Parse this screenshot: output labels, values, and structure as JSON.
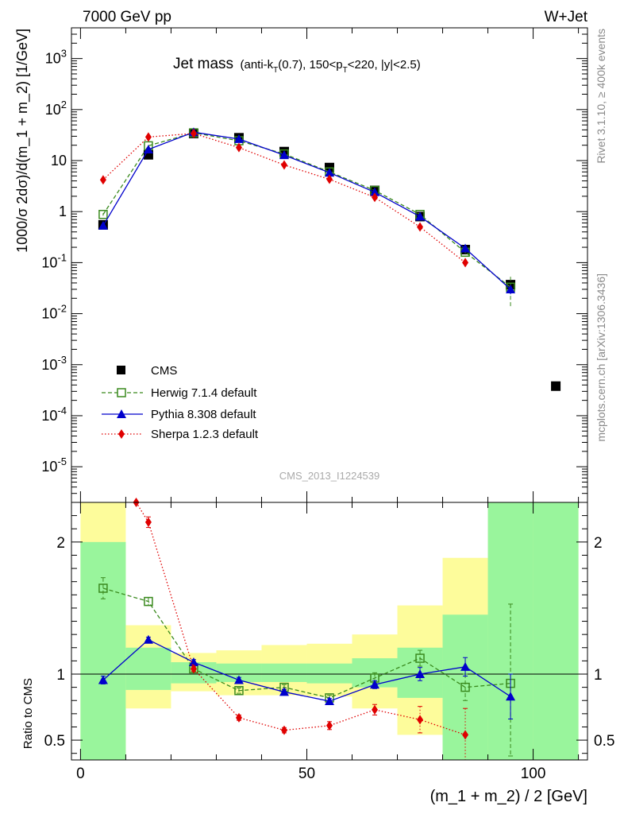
{
  "header": {
    "left": "7000 GeV pp",
    "right": "W+Jet"
  },
  "side_labels": {
    "rivet": "Rivet 3.1.10, ≥ 400k events",
    "mcplots": "mcplots.cern.ch [arXiv:1306.3436]"
  },
  "watermark": "CMS_2013_I1224539",
  "title": {
    "main": "Jet mass",
    "sub_a": "(anti-k",
    "sub_a_sub": "T",
    "sub_b": "(0.7), 150<p",
    "sub_b_sub": "T",
    "sub_c": "<220, |y|<2.5)"
  },
  "legend": {
    "cms": "CMS",
    "herwig": "Herwig 7.1.4 default",
    "pythia": "Pythia 8.308 default",
    "sherpa": "Sherpa 1.2.3 default"
  },
  "colors": {
    "cms": "#000000",
    "herwig": "#3a8a1e",
    "pythia": "#0000cc",
    "sherpa": "#e00000",
    "band_green": "#99f59c",
    "band_yellow": "#fdfc9b"
  },
  "chart_data": [
    {
      "type": "line",
      "panel": "main",
      "ylabel": "1000/σ 2dσ)/d(m_1 + m_2) [1/GeV]",
      "yscale": "log",
      "ylim": [
        2e-06,
        4000
      ],
      "xlim": [
        -2,
        112
      ],
      "y_ticks": [
        "10^-5",
        "10^-4",
        "10^-3",
        "10^-2",
        "10^-1",
        "1",
        "10",
        "10^2",
        "10^3"
      ],
      "series": [
        {
          "name": "CMS",
          "x": [
            5,
            15,
            25,
            35,
            45,
            55,
            65,
            75,
            85,
            95,
            105
          ],
          "y": [
            0.55,
            13,
            34,
            28,
            15,
            7.3,
            2.6,
            0.8,
            0.18,
            0.037,
            0.00038
          ]
        },
        {
          "name": "Herwig 7.1.4 default",
          "x": [
            5,
            15,
            25,
            35,
            45,
            55,
            65,
            75,
            85,
            95
          ],
          "y": [
            0.88,
            19.5,
            35,
            24.5,
            13.5,
            6.0,
            2.6,
            0.88,
            0.16,
            0.033
          ],
          "yerr": [
            0.05,
            0.6,
            0.8,
            0.6,
            0.4,
            0.2,
            0.1,
            0.05,
            0.02,
            0.02
          ]
        },
        {
          "name": "Pythia 8.308 default",
          "x": [
            5,
            15,
            25,
            35,
            45,
            55,
            65,
            75,
            85,
            95
          ],
          "y": [
            0.53,
            16.5,
            36,
            26.5,
            12.8,
            5.8,
            2.4,
            0.8,
            0.19,
            0.03
          ],
          "yerr": [
            0.04,
            0.5,
            0.8,
            0.6,
            0.3,
            0.15,
            0.08,
            0.04,
            0.02,
            0.006
          ]
        },
        {
          "name": "Sherpa 1.2.3 default",
          "x": [
            5,
            15,
            25,
            35,
            45,
            55,
            65,
            75,
            85
          ],
          "y": [
            4.2,
            29,
            34,
            18,
            8.2,
            4.3,
            1.9,
            0.5,
            0.1
          ],
          "yerr": [
            0.2,
            0.8,
            0.8,
            0.4,
            0.2,
            0.1,
            0.05,
            0.04,
            0.02
          ]
        }
      ]
    },
    {
      "type": "line",
      "panel": "ratio",
      "xlabel": "(m_1 + m_2) / 2 [GeV]",
      "ylabel": "Ratio to CMS",
      "ylim": [
        0.35,
        2.3
      ],
      "xlim": [
        -2,
        112
      ],
      "y_ticks": [
        "0.5",
        "1",
        "2"
      ],
      "x_ticks": [
        "0",
        "50",
        "100"
      ],
      "bands": {
        "bins": [
          [
            0,
            10
          ],
          [
            10,
            20
          ],
          [
            20,
            30
          ],
          [
            30,
            40
          ],
          [
            40,
            50
          ],
          [
            50,
            60
          ],
          [
            60,
            70
          ],
          [
            70,
            80
          ],
          [
            80,
            90
          ],
          [
            90,
            100
          ],
          [
            100,
            110
          ]
        ],
        "green": [
          [
            0.35,
            2.0
          ],
          [
            0.88,
            1.2
          ],
          [
            0.93,
            1.09
          ],
          [
            0.94,
            1.08
          ],
          [
            0.94,
            1.08
          ],
          [
            0.93,
            1.08
          ],
          [
            0.9,
            1.12
          ],
          [
            0.82,
            1.2
          ],
          [
            0.35,
            1.45
          ],
          [
            0.35,
            2.3
          ],
          [
            0.35,
            2.3
          ]
        ],
        "yellow": [
          [
            0.35,
            2.3
          ],
          [
            0.74,
            1.37
          ],
          [
            0.87,
            1.16
          ],
          [
            0.84,
            1.18
          ],
          [
            0.84,
            1.22
          ],
          [
            0.83,
            1.23
          ],
          [
            0.74,
            1.3
          ],
          [
            0.54,
            1.52
          ],
          [
            0.35,
            1.88
          ],
          [
            0.35,
            2.3
          ],
          [
            0.35,
            2.3
          ]
        ]
      },
      "series": [
        {
          "name": "Herwig 7.1.4 default",
          "x": [
            5,
            15,
            25,
            35,
            45,
            55,
            65,
            75,
            85,
            95
          ],
          "y": [
            1.65,
            1.55,
            1.04,
            0.875,
            0.9,
            0.82,
            0.97,
            1.12,
            0.9,
            0.93
          ],
          "yerr_lo": [
            0.08,
            0.03,
            0.02,
            0.02,
            0.02,
            0.02,
            0.04,
            0.06,
            0.1,
            0.55
          ],
          "yerr_hi": [
            0.08,
            0.03,
            0.02,
            0.02,
            0.02,
            0.02,
            0.04,
            0.06,
            0.1,
            0.6
          ]
        },
        {
          "name": "Pythia 8.308 default",
          "x": [
            5,
            15,
            25,
            35,
            45,
            55,
            65,
            75,
            85,
            95
          ],
          "y": [
            0.955,
            1.26,
            1.09,
            0.955,
            0.865,
            0.795,
            0.92,
            1.0,
            1.055,
            0.83
          ],
          "yerr_lo": [
            0.03,
            0.02,
            0.02,
            0.02,
            0.02,
            0.02,
            0.03,
            0.05,
            0.07,
            0.17
          ],
          "yerr_hi": [
            0.03,
            0.02,
            0.02,
            0.02,
            0.02,
            0.02,
            0.03,
            0.05,
            0.07,
            0.17
          ]
        },
        {
          "name": "Sherpa 1.2.3 default",
          "x": [
            12.3,
            15,
            25,
            35,
            45,
            55,
            65,
            75,
            85
          ],
          "y": [
            2.3,
            2.15,
            1.04,
            0.67,
            0.575,
            0.61,
            0.73,
            0.655,
            0.54
          ],
          "yerr_lo": [
            0,
            0.04,
            0.02,
            0.02,
            0.02,
            0.03,
            0.04,
            0.1,
            0.2
          ],
          "yerr_hi": [
            0,
            0.04,
            0.02,
            0.02,
            0.02,
            0.03,
            0.04,
            0.1,
            0.2
          ]
        }
      ]
    }
  ]
}
